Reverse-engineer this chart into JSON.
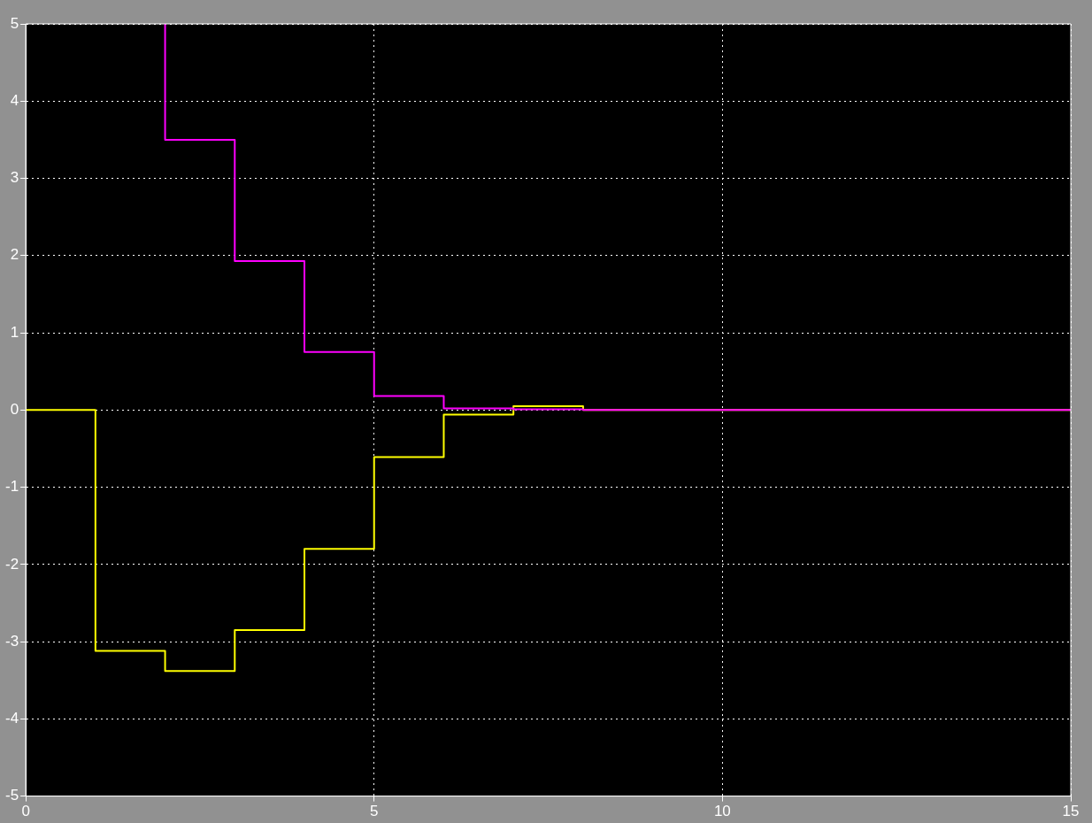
{
  "chart_data": {
    "type": "step",
    "xlim": [
      0,
      15
    ],
    "xticks": [
      0,
      5,
      10,
      15
    ],
    "ylim": [
      -5,
      5
    ],
    "yticks": [
      -5,
      -4,
      -3,
      -2,
      -1,
      0,
      1,
      2,
      3,
      4,
      5
    ],
    "grid": true,
    "legend": false,
    "marker": "none",
    "series": [
      {
        "color": "#ff00ff",
        "x": [
          2,
          2,
          3,
          4,
          5,
          6,
          7,
          8,
          9,
          15
        ],
        "values": [
          5,
          3.5,
          1.93,
          0.75,
          0.18,
          0.02,
          0.01,
          0,
          0,
          0
        ]
      },
      {
        "color": "#ffff00",
        "x": [
          0,
          1,
          2,
          3,
          4,
          5,
          6,
          7,
          8,
          9,
          15
        ],
        "values": [
          0,
          -3.12,
          -3.38,
          -2.85,
          -1.8,
          -0.61,
          -0.06,
          0.05,
          0,
          0,
          0
        ]
      }
    ]
  }
}
